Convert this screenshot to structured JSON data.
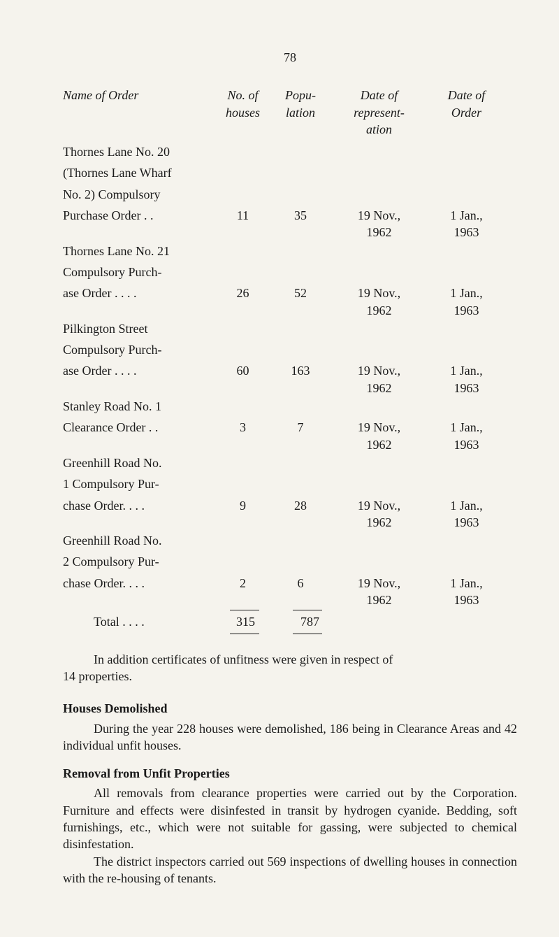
{
  "page_number": "78",
  "header": {
    "name": "Name of Order",
    "houses_line1": "No. of",
    "houses_line2": "houses",
    "popu_line1": "Popu-",
    "popu_line2": "lation",
    "date1_line1": "Date of",
    "date1_line2": "represent-",
    "date1_line3": "ation",
    "date2_line1": "Date of",
    "date2_line2": "Order"
  },
  "orders": [
    {
      "name_lines": [
        "Thornes Lane No. 20",
        "(Thornes Lane Wharf",
        "No. 2) Compulsory"
      ],
      "name_last": "Purchase Order   . .",
      "houses": "11",
      "popu": "35",
      "date1_l1": "19 Nov.,",
      "date1_l2": "1962",
      "date2_l1": "1 Jan.,",
      "date2_l2": "1963"
    },
    {
      "name_lines": [
        "Thornes Lane No. 21",
        "Compulsory   Purch-"
      ],
      "name_last": "ase Order   . .         . .",
      "houses": "26",
      "popu": "52",
      "date1_l1": "19 Nov.,",
      "date1_l2": "1962",
      "date2_l1": "1 Jan.,",
      "date2_l2": "1963"
    },
    {
      "name_lines": [
        "Pilkington        Street",
        "Compulsory   Purch-"
      ],
      "name_last": "ase Order   . .         . .",
      "houses": "60",
      "popu": "163",
      "date1_l1": "19 Nov.,",
      "date1_l2": "1962",
      "date2_l1": "1 Jan.,",
      "date2_l2": "1963"
    },
    {
      "name_lines": [
        "Stanley Road No. 1"
      ],
      "name_last": "Clearance Order   . .",
      "houses": "3",
      "popu": "7",
      "date1_l1": "19 Nov.,",
      "date1_l2": "1962",
      "date2_l1": "1 Jan.,",
      "date2_l2": "1963"
    },
    {
      "name_lines": [
        "Greenhill Road No.",
        "1  Compulsory  Pur-"
      ],
      "name_last": "chase Order. .        . .",
      "houses": "9",
      "popu": "28",
      "date1_l1": "19 Nov.,",
      "date1_l2": "1962",
      "date2_l1": "1 Jan.,",
      "date2_l2": "1963"
    },
    {
      "name_lines": [
        "Greenhill Road No.",
        "2  Compulsory  Pur-"
      ],
      "name_last": "chase Order. .        . .",
      "houses": "2",
      "popu": "6",
      "date1_l1": "19 Nov.,",
      "date1_l2": "1962",
      "date2_l1": "1 Jan.,",
      "date2_l2": "1963"
    }
  ],
  "total": {
    "label": "Total   . .        . .",
    "houses": "315",
    "popu": "787"
  },
  "para1": "In addition certificates of unfitness were given in respect of 14 properties.",
  "heading1": "Houses Demolished",
  "para2": "During the year 228 houses were demolished, 186 being in Clearance Areas and 42 individual unfit houses.",
  "heading2": "Removal from Unfit Properties",
  "para3": "All removals from clearance properties were carried out by the Corporation. Furniture and effects were disinfested in transit by hydrogen cyanide. Bedding, soft furnishings, etc., which were not suitable for gassing, were subjected to chemical disinfestation.",
  "para4": "The district inspectors carried out 569 inspections of dwelling houses in connection with the re-housing of tenants.",
  "para1_cont": "14 properties.",
  "para1_first": "In addition certificates of unfitness were given in respect of"
}
